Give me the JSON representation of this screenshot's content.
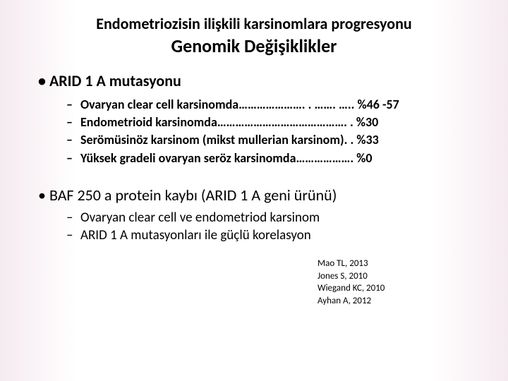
{
  "title": {
    "line1": "Endometriozisin ilişkili karsinomlara progresyonu",
    "line2": "Genomik Değişiklikler"
  },
  "section1": {
    "heading": "ARID 1 A mutasyonu",
    "items": [
      "Ovaryan clear cell karsinomda…………………. . ……. ….. %46 -57",
      "Endometrioid karsinomda……………………………………. . %30",
      "Serömüsinöz karsinom (mikst mullerian karsinom). . %33",
      "Yüksek gradeli ovaryan seröz karsinomda………………. %0"
    ]
  },
  "section2": {
    "heading": "BAF 250 a protein kaybı (ARID 1 A geni ürünü)",
    "items": [
      "Ovaryan clear cell ve endometriod karsinom",
      "ARID 1 A mutasyonları ile güçlü korelasyon"
    ]
  },
  "refs": [
    "Mao TL, 2013",
    "Jones S, 2010",
    "Wiegand KC, 2010",
    "Ayhan A, 2012"
  ]
}
